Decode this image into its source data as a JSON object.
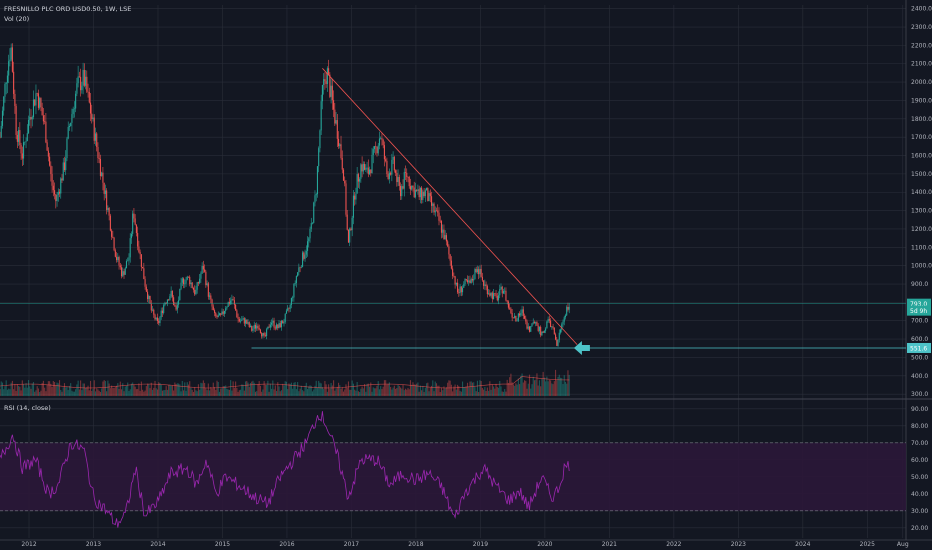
{
  "header": {
    "symbol_line": "FRESNILLO PLC ORD USD0.50, 1W, LSE",
    "volume_line": "Vol (20)",
    "rsi_line": "RSI (14, close)"
  },
  "colors": {
    "background": "#131722",
    "grid": "#2a2e39",
    "up": "#26a69a",
    "down": "#ef5350",
    "trendline": "#ef5350",
    "support": "#4dc3c8",
    "arrow": "#4dc3c8",
    "rsi": "#9c27b0",
    "rsi_band": "#2b1739"
  },
  "chart_data": [
    {
      "type": "candlestick",
      "name": "price",
      "x_ticks": [
        "2012",
        "2013",
        "2014",
        "2015",
        "2016",
        "2017",
        "2018",
        "2019",
        "2020",
        "2021",
        "2022",
        "2023",
        "2024",
        "2025",
        "Aug"
      ],
      "x_range": [
        2011.55,
        2025.6
      ],
      "y_ticks": [
        300,
        400,
        500,
        600,
        700,
        800,
        900,
        1000,
        1100,
        1200,
        1300,
        1400,
        1500,
        1600,
        1700,
        1800,
        1900,
        2000,
        2100,
        2200,
        2300,
        2400
      ],
      "ylim": [
        290,
        2420
      ],
      "series_points": [
        [
          2011.55,
          1700
        ],
        [
          2011.65,
          2050
        ],
        [
          2011.72,
          2200
        ],
        [
          2011.8,
          1750
        ],
        [
          2011.9,
          1600
        ],
        [
          2012.0,
          1800
        ],
        [
          2012.12,
          1950
        ],
        [
          2012.25,
          1750
        ],
        [
          2012.35,
          1450
        ],
        [
          2012.42,
          1350
        ],
        [
          2012.55,
          1550
        ],
        [
          2012.62,
          1750
        ],
        [
          2012.75,
          1980
        ],
        [
          2012.85,
          2020
        ],
        [
          2012.95,
          1850
        ],
        [
          2013.05,
          1650
        ],
        [
          2013.15,
          1450
        ],
        [
          2013.25,
          1250
        ],
        [
          2013.35,
          1050
        ],
        [
          2013.45,
          950
        ],
        [
          2013.55,
          1050
        ],
        [
          2013.62,
          1300
        ],
        [
          2013.7,
          1100
        ],
        [
          2013.8,
          900
        ],
        [
          2013.9,
          750
        ],
        [
          2014.0,
          680
        ],
        [
          2014.1,
          800
        ],
        [
          2014.2,
          850
        ],
        [
          2014.28,
          750
        ],
        [
          2014.38,
          920
        ],
        [
          2014.48,
          930
        ],
        [
          2014.58,
          850
        ],
        [
          2014.7,
          1000
        ],
        [
          2014.78,
          850
        ],
        [
          2014.88,
          720
        ],
        [
          2014.98,
          720
        ],
        [
          2015.05,
          780
        ],
        [
          2015.15,
          820
        ],
        [
          2015.25,
          700
        ],
        [
          2015.35,
          700
        ],
        [
          2015.45,
          650
        ],
        [
          2015.55,
          680
        ],
        [
          2015.65,
          600
        ],
        [
          2015.75,
          700
        ],
        [
          2015.85,
          660
        ],
        [
          2015.95,
          700
        ],
        [
          2016.05,
          780
        ],
        [
          2016.15,
          950
        ],
        [
          2016.25,
          1050
        ],
        [
          2016.35,
          1150
        ],
        [
          2016.45,
          1400
        ],
        [
          2016.55,
          1950
        ],
        [
          2016.62,
          2060
        ],
        [
          2016.72,
          1850
        ],
        [
          2016.8,
          1700
        ],
        [
          2016.88,
          1500
        ],
        [
          2016.95,
          1100
        ],
        [
          2017.05,
          1400
        ],
        [
          2017.15,
          1550
        ],
        [
          2017.25,
          1500
        ],
        [
          2017.35,
          1600
        ],
        [
          2017.45,
          1720
        ],
        [
          2017.55,
          1500
        ],
        [
          2017.65,
          1550
        ],
        [
          2017.75,
          1400
        ],
        [
          2017.85,
          1500
        ],
        [
          2017.95,
          1420
        ],
        [
          2018.05,
          1380
        ],
        [
          2018.15,
          1400
        ],
        [
          2018.25,
          1320
        ],
        [
          2018.35,
          1250
        ],
        [
          2018.45,
          1150
        ],
        [
          2018.55,
          1000
        ],
        [
          2018.65,
          850
        ],
        [
          2018.75,
          900
        ],
        [
          2018.85,
          900
        ],
        [
          2018.95,
          1000
        ],
        [
          2019.05,
          900
        ],
        [
          2019.15,
          850
        ],
        [
          2019.25,
          820
        ],
        [
          2019.35,
          880
        ],
        [
          2019.45,
          760
        ],
        [
          2019.55,
          700
        ],
        [
          2019.65,
          750
        ],
        [
          2019.75,
          650
        ],
        [
          2019.85,
          700
        ],
        [
          2019.95,
          620
        ],
        [
          2020.05,
          700
        ],
        [
          2020.12,
          660
        ],
        [
          2020.18,
          560
        ],
        [
          2020.22,
          620
        ],
        [
          2020.28,
          700
        ],
        [
          2020.33,
          760
        ],
        [
          2020.38,
          800
        ]
      ],
      "trendline": {
        "from": [
          2016.55,
          2075
        ],
        "to": [
          2020.5,
          570
        ]
      },
      "support_line": {
        "from_x": 2015.45,
        "level": 551.6,
        "label": "551.6"
      },
      "price_labels": [
        {
          "value": "793.0",
          "y": 793
        },
        {
          "value": "5d 9h",
          "y": 755
        }
      ],
      "price_label_support": {
        "value": "551.6",
        "y": 551.6
      }
    },
    {
      "type": "line",
      "name": "RSI (14, close)",
      "y_ticks": [
        20,
        30,
        40,
        50,
        60,
        70,
        80,
        90
      ],
      "ylim": [
        14,
        94
      ],
      "band": [
        30,
        70
      ],
      "series_points": [
        [
          2011.55,
          60
        ],
        [
          2011.75,
          75
        ],
        [
          2011.9,
          55
        ],
        [
          2012.1,
          60
        ],
        [
          2012.3,
          40
        ],
        [
          2012.45,
          45
        ],
        [
          2012.65,
          70
        ],
        [
          2012.85,
          66
        ],
        [
          2013.0,
          38
        ],
        [
          2013.2,
          30
        ],
        [
          2013.35,
          22
        ],
        [
          2013.5,
          28
        ],
        [
          2013.65,
          55
        ],
        [
          2013.8,
          27
        ],
        [
          2014.0,
          35
        ],
        [
          2014.2,
          52
        ],
        [
          2014.45,
          55
        ],
        [
          2014.6,
          45
        ],
        [
          2014.75,
          60
        ],
        [
          2014.9,
          40
        ],
        [
          2015.05,
          50
        ],
        [
          2015.25,
          45
        ],
        [
          2015.5,
          38
        ],
        [
          2015.7,
          34
        ],
        [
          2015.9,
          50
        ],
        [
          2016.1,
          60
        ],
        [
          2016.3,
          70
        ],
        [
          2016.5,
          88
        ],
        [
          2016.6,
          82
        ],
        [
          2016.8,
          60
        ],
        [
          2016.95,
          38
        ],
        [
          2017.15,
          60
        ],
        [
          2017.4,
          60
        ],
        [
          2017.6,
          45
        ],
        [
          2017.8,
          52
        ],
        [
          2018.0,
          48
        ],
        [
          2018.2,
          52
        ],
        [
          2018.4,
          44
        ],
        [
          2018.6,
          25
        ],
        [
          2018.75,
          40
        ],
        [
          2018.9,
          48
        ],
        [
          2019.05,
          55
        ],
        [
          2019.25,
          44
        ],
        [
          2019.45,
          36
        ],
        [
          2019.6,
          42
        ],
        [
          2019.75,
          32
        ],
        [
          2019.95,
          50
        ],
        [
          2020.1,
          38
        ],
        [
          2020.2,
          42
        ],
        [
          2020.3,
          55
        ],
        [
          2020.38,
          57
        ]
      ]
    }
  ]
}
